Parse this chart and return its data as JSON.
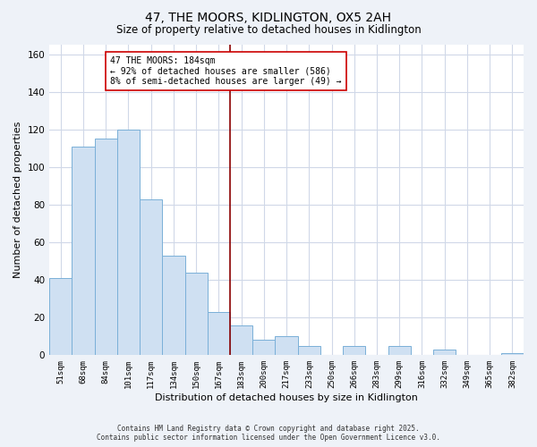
{
  "title": "47, THE MOORS, KIDLINGTON, OX5 2AH",
  "subtitle": "Size of property relative to detached houses in Kidlington",
  "xlabel": "Distribution of detached houses by size in Kidlington",
  "ylabel": "Number of detached properties",
  "bin_labels": [
    "51sqm",
    "68sqm",
    "84sqm",
    "101sqm",
    "117sqm",
    "134sqm",
    "150sqm",
    "167sqm",
    "183sqm",
    "200sqm",
    "217sqm",
    "233sqm",
    "250sqm",
    "266sqm",
    "283sqm",
    "299sqm",
    "316sqm",
    "332sqm",
    "349sqm",
    "365sqm",
    "382sqm"
  ],
  "bar_heights": [
    41,
    111,
    115,
    120,
    83,
    53,
    44,
    23,
    16,
    8,
    10,
    5,
    0,
    5,
    0,
    5,
    0,
    3,
    0,
    0,
    1
  ],
  "bar_color": "#cfe0f2",
  "bar_edge_color": "#7ab0d8",
  "vline_x_idx": 8,
  "vline_color": "#8b0000",
  "annotation_line1": "47 THE MOORS: 184sqm",
  "annotation_line2": "← 92% of detached houses are smaller (586)",
  "annotation_line3": "8% of semi-detached houses are larger (49) →",
  "annotation_box_color": "#ffffff",
  "annotation_box_edge": "#cc0000",
  "ylim": [
    0,
    165
  ],
  "yticks": [
    0,
    20,
    40,
    60,
    80,
    100,
    120,
    140,
    160
  ],
  "plot_bg": "#ffffff",
  "fig_bg": "#eef2f8",
  "grid_color": "#d0d8e8",
  "footer_line1": "Contains HM Land Registry data © Crown copyright and database right 2025.",
  "footer_line2": "Contains public sector information licensed under the Open Government Licence v3.0."
}
